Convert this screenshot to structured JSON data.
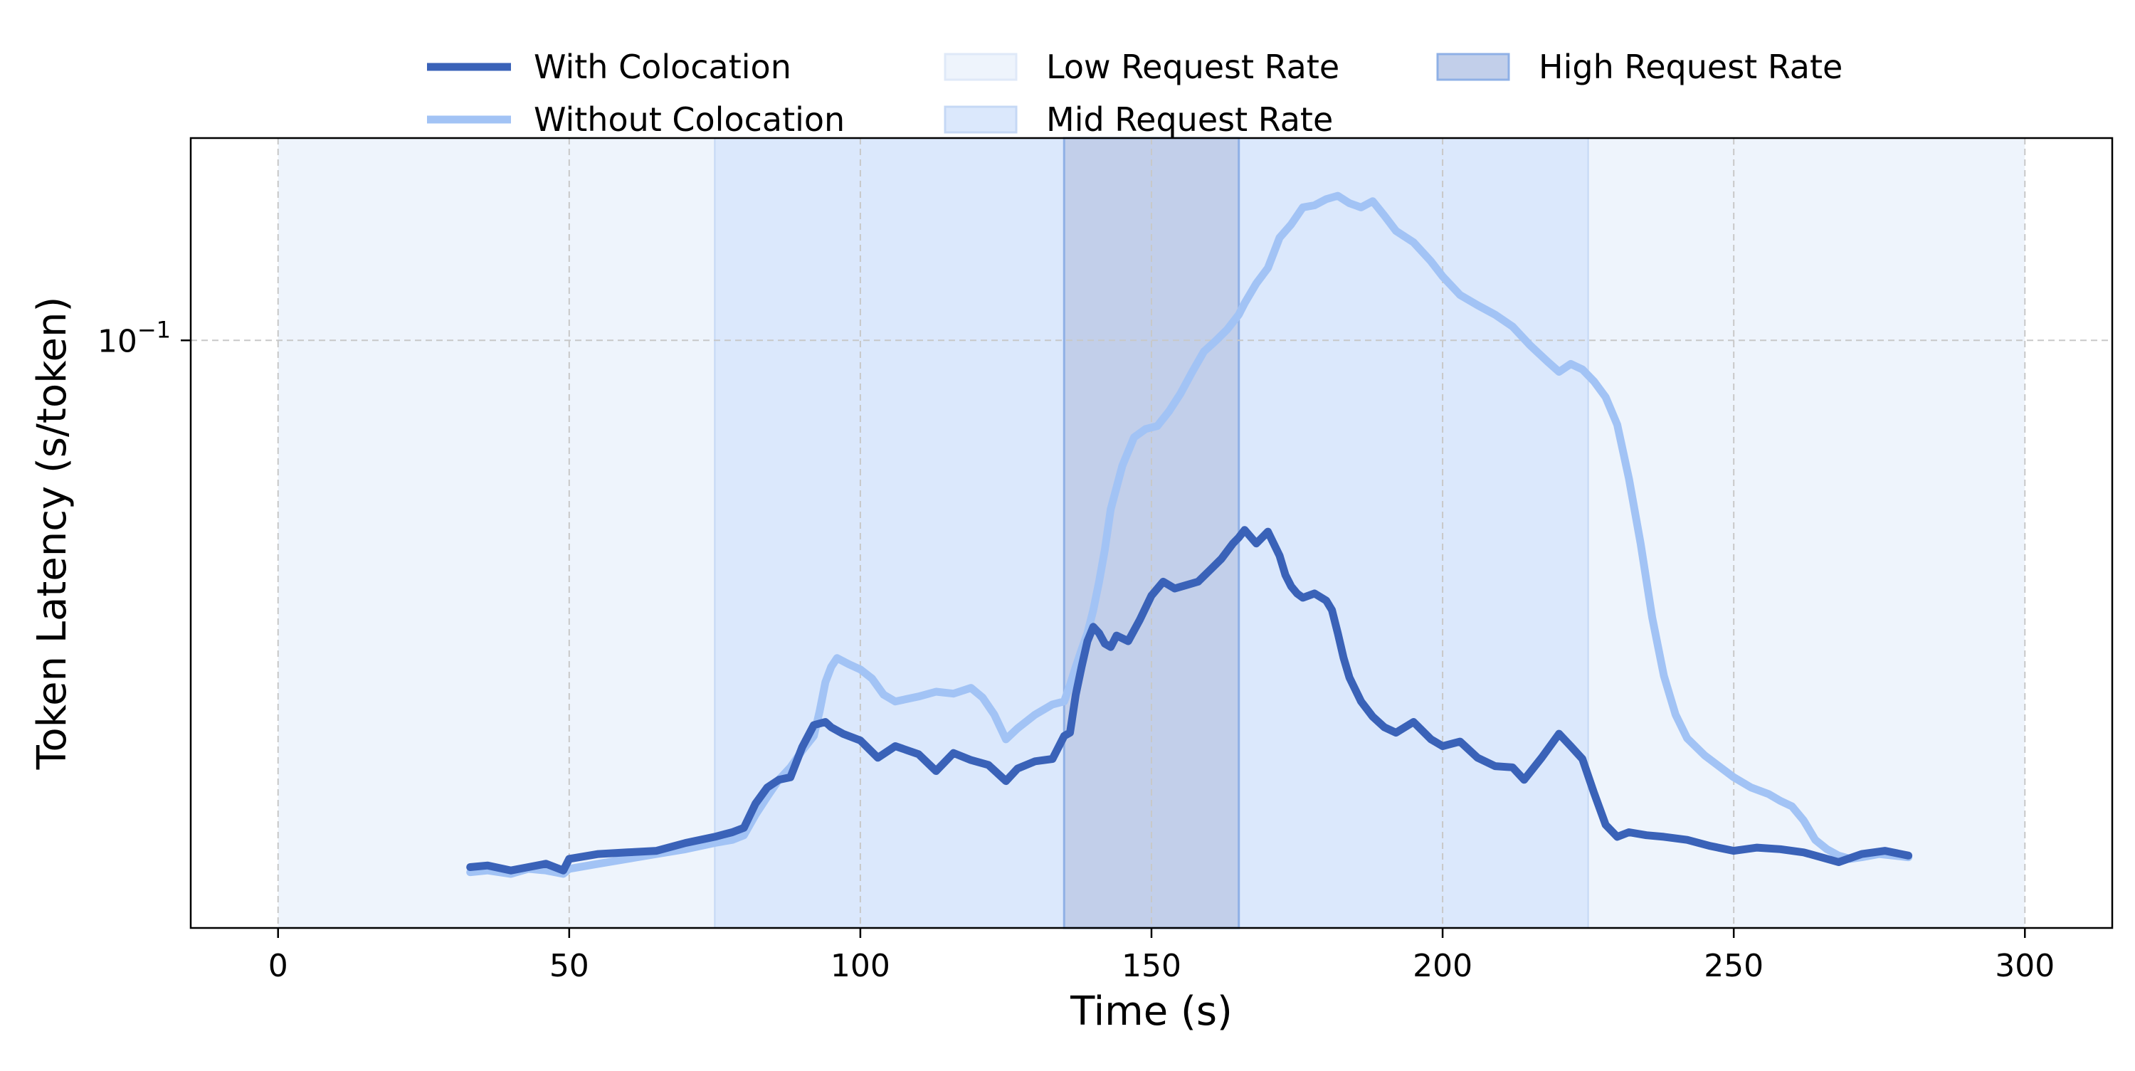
{
  "chart_data": {
    "type": "line",
    "title": "",
    "xlabel": "Time (s)",
    "ylabel": "Token Latency (s/token)",
    "xlim": [
      -15,
      315
    ],
    "ylim": [
      0.0155,
      0.19
    ],
    "yscale": "log",
    "grid": true,
    "legend_position": "top-center, outside plot",
    "x_ticks": [
      0,
      50,
      100,
      150,
      200,
      250,
      300
    ],
    "x_tick_labels": [
      "0",
      "50",
      "100",
      "150",
      "200",
      "250",
      "300"
    ],
    "y_ticks": [
      0.1
    ],
    "y_tick_labels": [
      "10^{-1}"
    ],
    "regions": [
      {
        "name": "Low Request Rate",
        "color": "#eef4fc",
        "spans": [
          [
            0,
            75
          ],
          [
            225,
            300
          ]
        ]
      },
      {
        "name": "Mid Request Rate",
        "color": "#dbe8fc",
        "spans": [
          [
            75,
            135
          ],
          [
            165,
            225
          ]
        ]
      },
      {
        "name": "High Request Rate",
        "color": "#c2cfea",
        "spans": [
          [
            135,
            165
          ]
        ]
      }
    ],
    "series": [
      {
        "name": "With Colocation",
        "color": "#3a62b8",
        "x": [
          33,
          36,
          40,
          43,
          46,
          49,
          50,
          55,
          60,
          65,
          70,
          75,
          78,
          80,
          82,
          84,
          86,
          88,
          90,
          92,
          94,
          95,
          97,
          100,
          103,
          106,
          110,
          113,
          116,
          119,
          122,
          125,
          127,
          130,
          133,
          135,
          136,
          137,
          138,
          139,
          140,
          141,
          142,
          143,
          144,
          146,
          148,
          150,
          152,
          154,
          156,
          158,
          160,
          162,
          164,
          165,
          166,
          168,
          170,
          172,
          173,
          174,
          175,
          176,
          177,
          178,
          180,
          181,
          182,
          183,
          184,
          186,
          188,
          190,
          192,
          195,
          198,
          200,
          203,
          206,
          209,
          212,
          214,
          217,
          220,
          222,
          224,
          226,
          228,
          230,
          232,
          235,
          238,
          242,
          246,
          250,
          254,
          258,
          262,
          265,
          268,
          272,
          276,
          280
        ],
        "values": [
          0.0188,
          0.0189,
          0.0186,
          0.0188,
          0.019,
          0.0186,
          0.0193,
          0.0196,
          0.0197,
          0.0198,
          0.0203,
          0.0207,
          0.021,
          0.0213,
          0.023,
          0.0242,
          0.0248,
          0.025,
          0.0275,
          0.0295,
          0.0298,
          0.0293,
          0.0287,
          0.0281,
          0.0266,
          0.0276,
          0.0269,
          0.0255,
          0.027,
          0.0264,
          0.026,
          0.0247,
          0.0257,
          0.0263,
          0.0265,
          0.0285,
          0.0288,
          0.0325,
          0.0355,
          0.0385,
          0.0403,
          0.0395,
          0.0382,
          0.0378,
          0.0392,
          0.0385,
          0.0412,
          0.0445,
          0.0465,
          0.0455,
          0.046,
          0.0465,
          0.0482,
          0.05,
          0.0525,
          0.0535,
          0.0548,
          0.0525,
          0.0545,
          0.0505,
          0.0475,
          0.0458,
          0.0448,
          0.0442,
          0.0445,
          0.0448,
          0.0438,
          0.0425,
          0.0395,
          0.0365,
          0.0343,
          0.0318,
          0.0303,
          0.0293,
          0.0288,
          0.0298,
          0.0282,
          0.0276,
          0.028,
          0.0266,
          0.0259,
          0.0258,
          0.0248,
          0.0266,
          0.0287,
          0.0276,
          0.0265,
          0.0238,
          0.0215,
          0.0207,
          0.021,
          0.0208,
          0.0207,
          0.0205,
          0.0201,
          0.0198,
          0.02,
          0.0199,
          0.0197,
          0.0194,
          0.0191,
          0.0196,
          0.0198,
          0.0195
        ]
      },
      {
        "name": "Without Colocation",
        "color": "#a2c3f5",
        "x": [
          33,
          36,
          40,
          43,
          46,
          49,
          50,
          55,
          60,
          65,
          70,
          75,
          78,
          80,
          82,
          84,
          86,
          88,
          90,
          92,
          93,
          94,
          95,
          96,
          98,
          100,
          102,
          104,
          106,
          110,
          113,
          116,
          119,
          121,
          123,
          125,
          127,
          130,
          133,
          135,
          136,
          137,
          138,
          139,
          140,
          141,
          142,
          143,
          145,
          147,
          149,
          151,
          153,
          155,
          157,
          159,
          161,
          163,
          165,
          166,
          168,
          170,
          172,
          174,
          176,
          178,
          180,
          182,
          184,
          186,
          188,
          190,
          192,
          195,
          198,
          200,
          203,
          206,
          209,
          212,
          215,
          218,
          220,
          222,
          224,
          226,
          228,
          230,
          232,
          234,
          236,
          238,
          240,
          242,
          245,
          248,
          250,
          253,
          256,
          258,
          260,
          262,
          264,
          266,
          268,
          270,
          272,
          275,
          280
        ],
        "values": [
          0.0185,
          0.0186,
          0.0184,
          0.0187,
          0.0186,
          0.0184,
          0.0187,
          0.019,
          0.0193,
          0.0196,
          0.0199,
          0.0203,
          0.0205,
          0.0208,
          0.0222,
          0.0235,
          0.0248,
          0.0258,
          0.0272,
          0.0285,
          0.0308,
          0.0338,
          0.0355,
          0.0365,
          0.0358,
          0.0352,
          0.0342,
          0.0325,
          0.0318,
          0.0323,
          0.0328,
          0.0326,
          0.0332,
          0.0322,
          0.0305,
          0.0282,
          0.0292,
          0.0305,
          0.0315,
          0.0318,
          0.0335,
          0.0355,
          0.0375,
          0.0395,
          0.0425,
          0.0465,
          0.0515,
          0.0585,
          0.0672,
          0.0735,
          0.0755,
          0.0762,
          0.0798,
          0.0845,
          0.0905,
          0.0965,
          0.0998,
          0.1035,
          0.1085,
          0.1125,
          0.1198,
          0.1258,
          0.1385,
          0.1445,
          0.1525,
          0.1535,
          0.1565,
          0.1582,
          0.1545,
          0.1525,
          0.1555,
          0.1485,
          0.1415,
          0.1365,
          0.1285,
          0.1225,
          0.1155,
          0.1118,
          0.1085,
          0.1045,
          0.0985,
          0.0935,
          0.0905,
          0.0928,
          0.0912,
          0.0878,
          0.0835,
          0.0765,
          0.0645,
          0.0525,
          0.0415,
          0.0345,
          0.0305,
          0.0283,
          0.0268,
          0.0257,
          0.025,
          0.0242,
          0.0237,
          0.0232,
          0.0228,
          0.0218,
          0.0205,
          0.0199,
          0.0195,
          0.0193,
          0.0194,
          0.0196,
          0.0194
        ]
      }
    ]
  }
}
